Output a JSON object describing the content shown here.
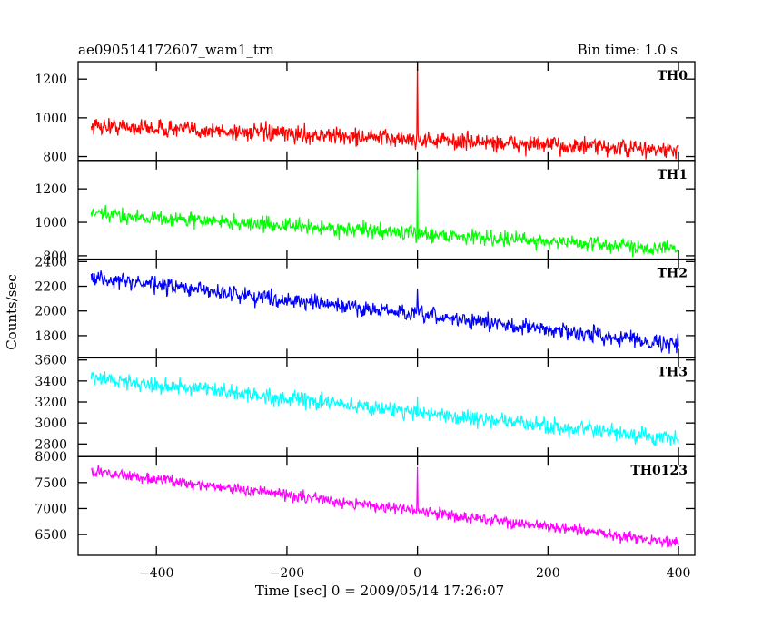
{
  "header": {
    "title": "ae090514172607_wam1_trn",
    "bin_time": "Bin time: 1.0 s"
  },
  "chart_data": {
    "type": "line",
    "xlabel": "Time [sec] 0 = 2009/05/14 17:26:07",
    "ylabel": "Counts/sec",
    "xlim": [
      -520,
      425
    ],
    "x_ticks": [
      -400,
      -200,
      0,
      200,
      400
    ],
    "x_tick_labels": [
      "−400",
      "−200",
      "0",
      "200",
      "400"
    ],
    "x_range": [
      -500,
      400
    ],
    "series": [
      {
        "name": "TH0",
        "color": "#ff0000",
        "ylim": [
          780,
          1290
        ],
        "y_ticks": [
          800,
          1000,
          1200
        ],
        "trend_start": 960,
        "trend_end": 830,
        "noise": 45,
        "spike": {
          "x": 0,
          "y": 1290
        }
      },
      {
        "name": "TH1",
        "color": "#00ff00",
        "ylim": [
          780,
          1370
        ],
        "y_ticks": [
          800,
          1000,
          1200
        ],
        "trend_start": 1050,
        "trend_end": 840,
        "noise": 45,
        "spike": {
          "x": 0,
          "y": 1360
        }
      },
      {
        "name": "TH2",
        "color": "#0000ff",
        "ylim": [
          1620,
          2420
        ],
        "y_ticks": [
          1800,
          2000,
          2200,
          2400
        ],
        "trend_start": 2270,
        "trend_end": 1730,
        "noise": 65,
        "spike": {
          "x": 0,
          "y": 2180
        }
      },
      {
        "name": "TH3",
        "color": "#00ffff",
        "ylim": [
          2680,
          3620
        ],
        "y_ticks": [
          2800,
          3000,
          3200,
          3400,
          3600
        ],
        "trend_start": 3430,
        "trend_end": 2840,
        "noise": 75,
        "spike": {
          "x": 0,
          "y": 3250
        }
      },
      {
        "name": "TH0123",
        "color": "#ff00ff",
        "ylim": [
          6100,
          8000
        ],
        "y_ticks": [
          6500,
          7000,
          7500,
          8000
        ],
        "trend_start": 7720,
        "trend_end": 6340,
        "noise": 110,
        "spike": {
          "x": 0,
          "y": 7800
        }
      }
    ]
  }
}
